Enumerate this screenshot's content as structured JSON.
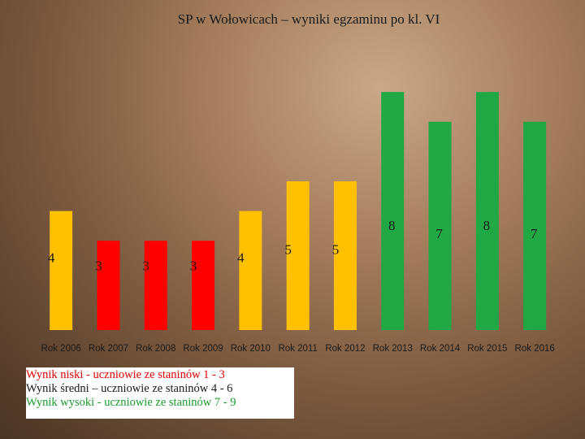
{
  "title": "SP w Wołowicach – wyniki egzaminu po kl. VI",
  "colors": {
    "low": "#ff0000",
    "mid": "#ffc000",
    "high": "#1fa844"
  },
  "legend": {
    "low": "Wynik niski - uczniowie ze staninów 1 - 3",
    "mid": "Wynik średni – uczniowie ze staninów 4 - 6",
    "high": "Wynik wysoki - uczniowie ze staninów 7 - 9"
  },
  "chart_data": {
    "type": "bar",
    "title": "SP w Wołowicach – wyniki egzaminu po kl. VI",
    "categories": [
      "Rok 2006",
      "Rok 2007",
      "Rok 2008",
      "Rok 2009",
      "Rok 2010",
      "Rok 2011",
      "Rok 2012",
      "Rok 2013",
      "Rok 2014",
      "Rok 2015",
      "Rok 2016"
    ],
    "values": [
      4,
      3,
      3,
      3,
      4,
      5,
      5,
      8,
      7,
      8,
      7
    ],
    "levels": [
      "mid",
      "low",
      "low",
      "low",
      "mid",
      "mid",
      "mid",
      "high",
      "high",
      "high",
      "high"
    ],
    "xlabel": "",
    "ylabel": "",
    "ylim": [
      0,
      9
    ],
    "grid": false,
    "legend_position": "bottom-left"
  }
}
